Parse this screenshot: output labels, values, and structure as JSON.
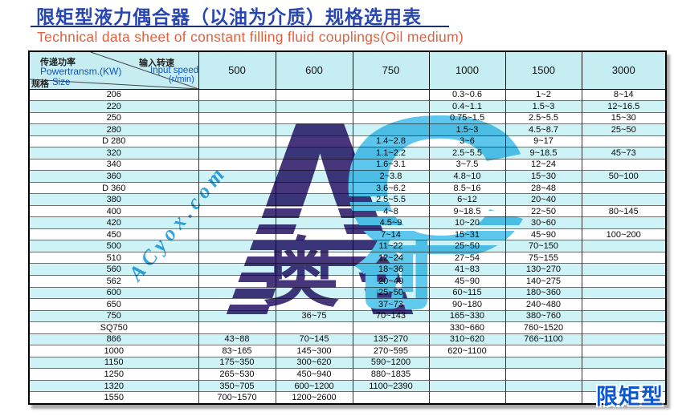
{
  "page": {
    "title_zh": "限矩型液力偶合器（以油为介质）规格选用表",
    "subtitle_en": "Technical data sheet of constant filling fluid couplings(Oil medium)",
    "corner_label": "限矩型",
    "colors": {
      "title_blue": "#2746b2",
      "subtitle_orange": "#e2603c",
      "header_cyan": "#c6eef2",
      "stripe_cyan": "#cdf3f6",
      "watermark_dark_indigo": "#3e2b75",
      "watermark_light_blue": "#54c3ec",
      "corner_label_blue": "#0c56cf"
    }
  },
  "watermark": {
    "letter_a": "A",
    "letter_c": "C",
    "diagonal_text": "ACyox.com",
    "char_ao": "奥",
    "char_chuang": "创"
  },
  "table": {
    "corner": {
      "power_zh": "传递功率",
      "power_en": "Powertransm.(KW)",
      "speed_zh": "输入转速",
      "speed_en": "Input speed",
      "speed_unit": "(r/min)",
      "size_zh": "规格",
      "size_en": "Size"
    },
    "speed_columns": [
      "500",
      "600",
      "750",
      "1000",
      "1500",
      "3000"
    ],
    "rows": [
      {
        "size": "206",
        "values": [
          "",
          "",
          "",
          "0.3~0.6",
          "1~2",
          "8~14"
        ]
      },
      {
        "size": "220",
        "values": [
          "",
          "",
          "",
          "0.4~1.1",
          "1.5~3",
          "12~16.5"
        ]
      },
      {
        "size": "250",
        "values": [
          "",
          "",
          "",
          "0.75~1.5",
          "2.5~5.5",
          "15~30"
        ]
      },
      {
        "size": "280",
        "values": [
          "",
          "",
          "",
          "1.5~3",
          "4.5~8.7",
          "25~50"
        ]
      },
      {
        "size": "D 280",
        "values": [
          "",
          "",
          "1.4~2.8",
          "3~6",
          "9~17",
          ""
        ]
      },
      {
        "size": "320",
        "values": [
          "",
          "",
          "1.1~2.2",
          "2.5~5.5",
          "9~18.5",
          "45~73"
        ]
      },
      {
        "size": "340",
        "values": [
          "",
          "",
          "1.6~3.1",
          "3~7.5",
          "12~24",
          ""
        ]
      },
      {
        "size": "360",
        "values": [
          "",
          "",
          "2~3.8",
          "4.8~10",
          "15~30",
          "50~100"
        ]
      },
      {
        "size": "D 360",
        "values": [
          "",
          "",
          "3.6~6.2",
          "8.5~16",
          "28~48",
          ""
        ]
      },
      {
        "size": "380",
        "values": [
          "",
          "",
          "2.5~5.5",
          "6~12",
          "20~40",
          ""
        ]
      },
      {
        "size": "400",
        "values": [
          "",
          "",
          "4~8",
          "9~18.5",
          "22~50",
          "80~145"
        ]
      },
      {
        "size": "420",
        "values": [
          "",
          "",
          "4.5~9",
          "10~20",
          "30~60",
          ""
        ]
      },
      {
        "size": "450",
        "values": [
          "",
          "",
          "7~14",
          "15~31",
          "45~90",
          "100~200"
        ]
      },
      {
        "size": "500",
        "values": [
          "",
          "",
          "11~22",
          "25~50",
          "70~150",
          ""
        ]
      },
      {
        "size": "510",
        "values": [
          "",
          "",
          "12~24",
          "27~54",
          "75~155",
          ""
        ]
      },
      {
        "size": "560",
        "values": [
          "",
          "",
          "18~36",
          "41~83",
          "130~270",
          ""
        ]
      },
      {
        "size": "562",
        "values": [
          "",
          "",
          "20~40",
          "45~90",
          "140~275",
          ""
        ]
      },
      {
        "size": "600",
        "values": [
          "",
          "",
          "25~50",
          "60~115",
          "180~360",
          ""
        ]
      },
      {
        "size": "650",
        "values": [
          "",
          "",
          "37~73",
          "90~180",
          "240~480",
          ""
        ]
      },
      {
        "size": "750",
        "values": [
          "",
          "36~75",
          "70~143",
          "165~330",
          "380~760",
          ""
        ]
      },
      {
        "size": "SQ750",
        "values": [
          "",
          "",
          "",
          "330~660",
          "760~1520",
          ""
        ]
      },
      {
        "size": "866",
        "values": [
          "43~88",
          "70~145",
          "135~270",
          "310~620",
          "766~1100",
          ""
        ]
      },
      {
        "size": "1000",
        "values": [
          "83~165",
          "145~300",
          "270~595",
          "620~1100",
          "",
          ""
        ]
      },
      {
        "size": "1150",
        "values": [
          "175~350",
          "300~620",
          "590~1200",
          "",
          "",
          ""
        ]
      },
      {
        "size": "1250",
        "values": [
          "265~530",
          "450~940",
          "880~1835",
          "",
          "",
          ""
        ]
      },
      {
        "size": "1320",
        "values": [
          "350~705",
          "600~1200",
          "1100~2390",
          "",
          "",
          ""
        ]
      },
      {
        "size": "1550",
        "values": [
          "700~1570",
          "1200~2600",
          "",
          "",
          "",
          ""
        ]
      }
    ]
  }
}
